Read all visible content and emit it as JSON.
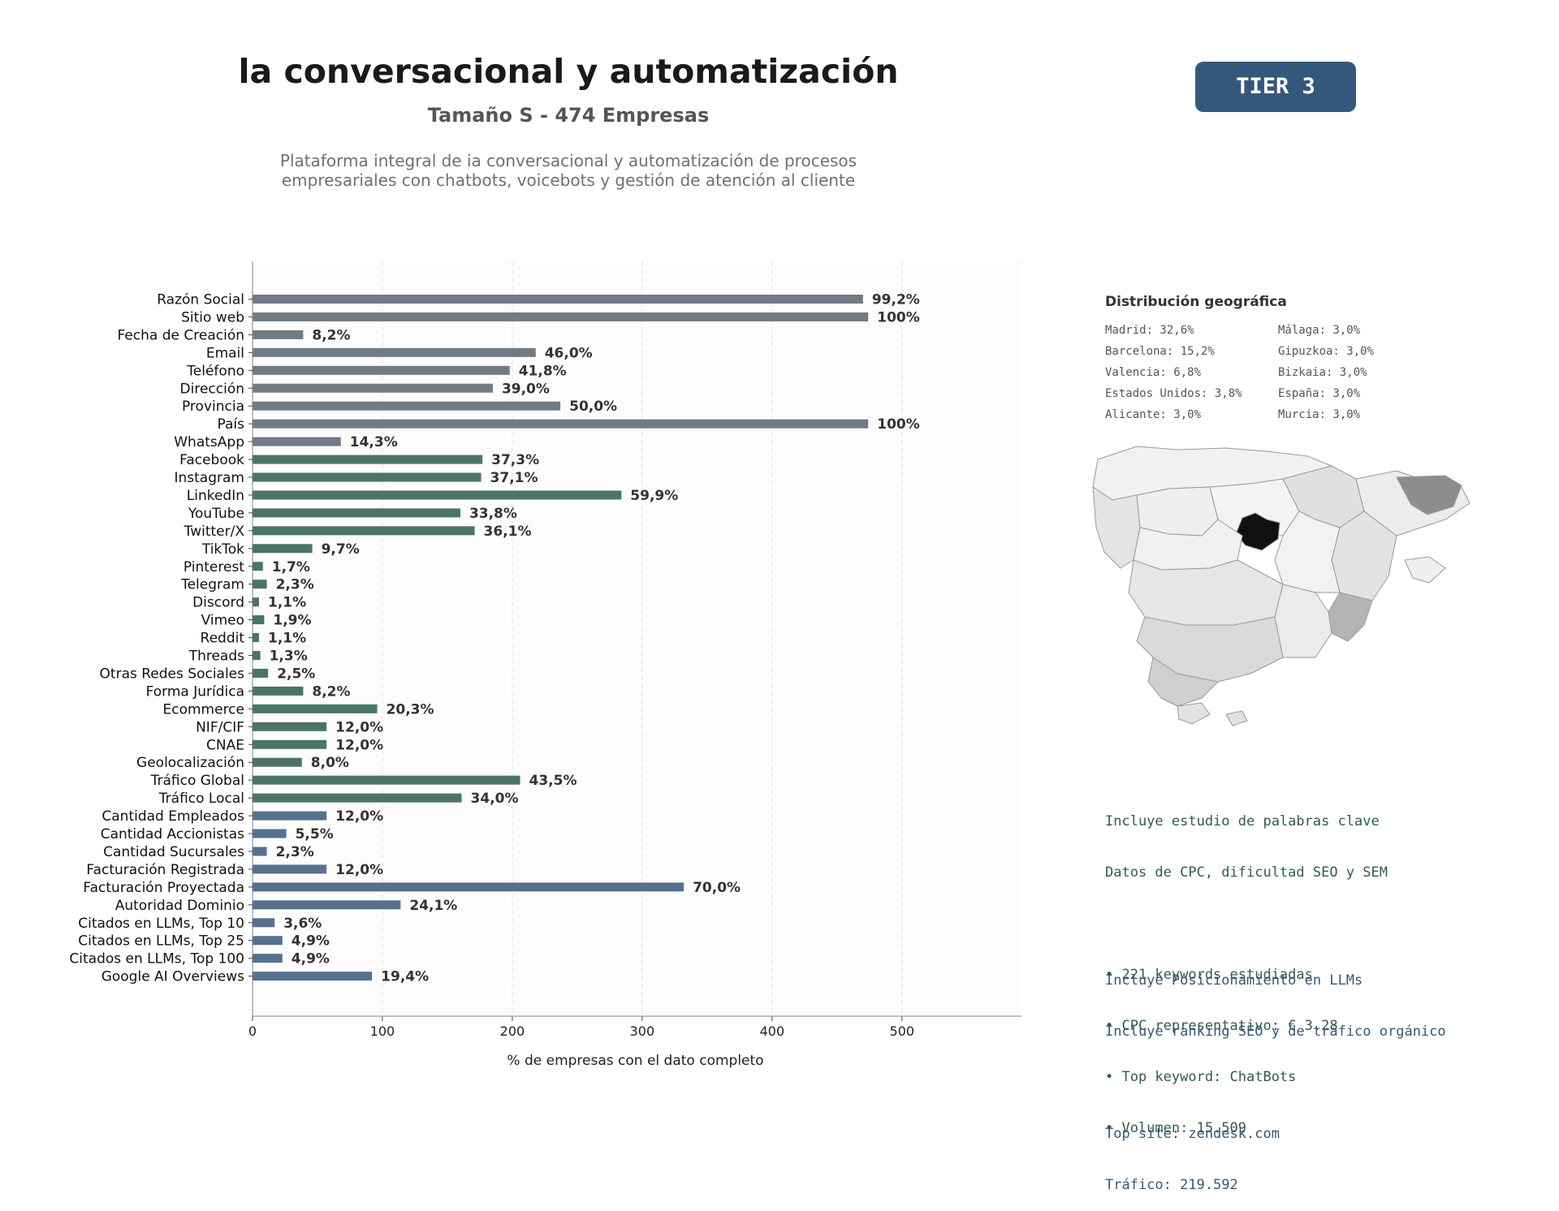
{
  "header": {
    "title": "la conversacional y automatización",
    "subtitle": "Tamaño S - 474 Empresas",
    "description_lines": [
      "Plataforma integral de ia conversacional y automatización de procesos",
      "empresariales con chatbots, voicebots y gestión de atención al cliente"
    ]
  },
  "badge": {
    "label": "TIER 3",
    "color": "#34587b"
  },
  "colors": {
    "gray": "#717b86",
    "green": "#4b7563",
    "blue": "#56718f"
  },
  "chart_data": {
    "type": "bar",
    "orientation": "horizontal",
    "xlabel": "% de empresas con el dato completo",
    "xlim": [
      0,
      592
    ],
    "xticks": [
      0,
      100,
      200,
      300,
      400,
      500
    ],
    "grid": "vertical dashed",
    "categories": [
      "Razón Social",
      "Sitio web",
      "Fecha de Creación",
      "Email",
      "Teléfono",
      "Dirección",
      "Provincia",
      "País",
      "WhatsApp",
      "Facebook",
      "Instagram",
      "LinkedIn",
      "YouTube",
      "Twitter/X",
      "TikTok",
      "Pinterest",
      "Telegram",
      "Discord",
      "Vimeo",
      "Reddit",
      "Threads",
      "Otras Redes Sociales",
      "Forma Jurídica",
      "Ecommerce",
      "NIF/CIF",
      "CNAE",
      "Geolocalización",
      "Tráfico Global",
      "Tráfico Local",
      "Cantidad Empleados",
      "Cantidad Accionistas",
      "Cantidad Sucursales",
      "Facturación Registrada",
      "Facturación Proyectada",
      "Autoridad Dominio",
      "Citados en LLMs, Top 10",
      "Citados en LLMs, Top 25",
      "Citados en LLMs, Top 100",
      "Google AI Overviews"
    ],
    "values": [
      470,
      474,
      39,
      218,
      198,
      185,
      237,
      474,
      68,
      177,
      176,
      284,
      160,
      171,
      46,
      8,
      11,
      5,
      9,
      5,
      6,
      12,
      39,
      96,
      57,
      57,
      38,
      206,
      161,
      57,
      26,
      11,
      57,
      332,
      114,
      17,
      23,
      23,
      92
    ],
    "labels": [
      "99,2%",
      "100%",
      "8,2%",
      "46,0%",
      "41,8%",
      "39,0%",
      "50,0%",
      "100%",
      "14,3%",
      "37,3%",
      "37,1%",
      "59,9%",
      "33,8%",
      "36,1%",
      "9,7%",
      "1,7%",
      "2,3%",
      "1,1%",
      "1,9%",
      "1,1%",
      "1,3%",
      "2,5%",
      "8,2%",
      "20,3%",
      "12,0%",
      "12,0%",
      "8,0%",
      "43,5%",
      "34,0%",
      "12,0%",
      "5,5%",
      "2,3%",
      "12,0%",
      "70,0%",
      "24,1%",
      "3,6%",
      "4,9%",
      "4,9%",
      "19,4%"
    ],
    "groups": [
      "gray",
      "gray",
      "gray",
      "gray",
      "gray",
      "gray",
      "gray",
      "gray",
      "gray",
      "green",
      "green",
      "green",
      "green",
      "green",
      "green",
      "green",
      "green",
      "green",
      "green",
      "green",
      "green",
      "green",
      "green",
      "green",
      "green",
      "green",
      "green",
      "green",
      "green",
      "blue",
      "blue",
      "blue",
      "blue",
      "blue",
      "blue",
      "blue",
      "blue",
      "blue",
      "blue"
    ]
  },
  "geo": {
    "title": "Distribución geográfica",
    "items": [
      "Madrid: 32,6%",
      "Málaga: 3,0%",
      "Barcelona: 15,2%",
      "Gipuzkoa: 3,0%",
      "Valencia: 6,8%",
      "Bizkaia: 3,0%",
      "Estados Unidos: 3,8%",
      "España: 3,0%",
      "Alicante: 3,0%",
      "Murcia: 3,0%"
    ]
  },
  "keywords_info": {
    "lines": [
      "Incluye estudio de palabras clave",
      "Datos de CPC, dificultad SEO y SEM"
    ],
    "bullets": [
      "• 221 keywords estudiadas",
      "• CPC representativo: € 3.28",
      "• Top keyword: ChatBots",
      "• Volumen: 15.509"
    ]
  },
  "llm_info": {
    "lines": [
      "Incluye Posicionamiento en LLMs",
      "Incluye ranking SEO y de tráfico orgánico"
    ],
    "site": [
      "Top site: zendesk.com",
      "Tráfico: 219.592"
    ]
  }
}
